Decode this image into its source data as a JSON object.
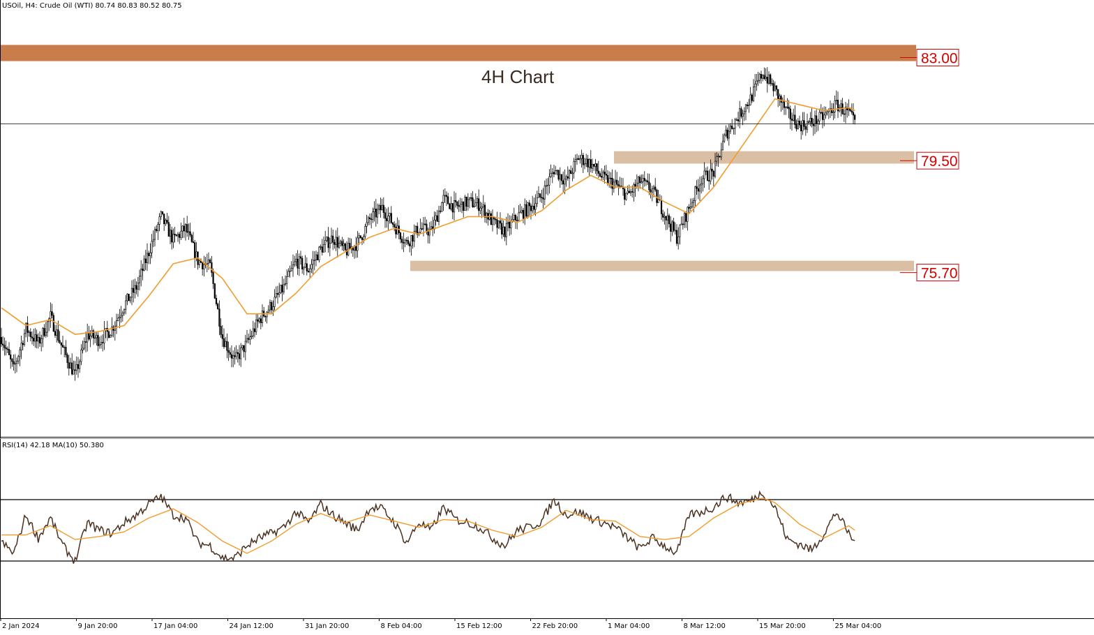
{
  "header": {
    "symbol_info": "USOil, H4:  Crude Oil (WTI)  80.74 80.83 80.52 80.75"
  },
  "annotation": {
    "chart_title": "4H Chart"
  },
  "colors": {
    "resistance_zone": "#c87d4a",
    "support_zone": "#dbbfa5",
    "moving_average": "#f39b2a",
    "level_label": "#d40000",
    "candle": "#000000",
    "rsi_line": "#4a3020"
  },
  "chart_data": {
    "type": "candlestick",
    "symbol": "USOil",
    "timeframe": "H4",
    "ylim": [
      70.5,
      84.6
    ],
    "current_price": 80.75,
    "x_tick_labels": [
      "2 Jan 2024",
      "9 Jan 20:00",
      "17 Jan 04:00",
      "24 Jan 12:00",
      "31 Jan 20:00",
      "8 Feb 04:00",
      "15 Feb 12:00",
      "22 Feb 20:00",
      "1 Mar 04:00",
      "8 Mar 12:00",
      "15 Mar 20:00",
      "25 Mar 04:00"
    ],
    "close_path": [
      [
        0,
        73.5
      ],
      [
        8,
        72.4
      ],
      [
        16,
        73.8
      ],
      [
        24,
        73.3
      ],
      [
        32,
        74.2
      ],
      [
        40,
        73.1
      ],
      [
        48,
        72.2
      ],
      [
        56,
        73.6
      ],
      [
        64,
        73.4
      ],
      [
        72,
        73.8
      ],
      [
        80,
        74.6
      ],
      [
        88,
        75.2
      ],
      [
        96,
        76.4
      ],
      [
        104,
        77.6
      ],
      [
        112,
        76.8
      ],
      [
        120,
        77.2
      ],
      [
        128,
        76.1
      ],
      [
        136,
        75.9
      ],
      [
        144,
        73.5
      ],
      [
        152,
        72.7
      ],
      [
        160,
        73.3
      ],
      [
        168,
        74.1
      ],
      [
        176,
        74.6
      ],
      [
        184,
        75.2
      ],
      [
        192,
        76.1
      ],
      [
        200,
        75.8
      ],
      [
        208,
        76.5
      ],
      [
        216,
        76.9
      ],
      [
        224,
        76.4
      ],
      [
        232,
        76.7
      ],
      [
        240,
        77.5
      ],
      [
        248,
        77.9
      ],
      [
        256,
        77.3
      ],
      [
        264,
        76.7
      ],
      [
        272,
        77.2
      ],
      [
        280,
        77.1
      ],
      [
        288,
        78.2
      ],
      [
        296,
        77.9
      ],
      [
        304,
        78.1
      ],
      [
        312,
        78.0
      ],
      [
        320,
        77.4
      ],
      [
        328,
        77.1
      ],
      [
        336,
        77.6
      ],
      [
        344,
        77.9
      ],
      [
        352,
        78.3
      ],
      [
        360,
        79.2
      ],
      [
        368,
        78.8
      ],
      [
        376,
        79.6
      ],
      [
        384,
        79.4
      ],
      [
        392,
        78.9
      ],
      [
        400,
        78.7
      ],
      [
        408,
        78.3
      ],
      [
        416,
        78.8
      ],
      [
        424,
        78.5
      ],
      [
        432,
        77.7
      ],
      [
        440,
        76.9
      ],
      [
        448,
        77.9
      ],
      [
        456,
        78.9
      ],
      [
        464,
        79.1
      ],
      [
        472,
        80.4
      ],
      [
        480,
        81.0
      ],
      [
        488,
        81.6
      ],
      [
        496,
        82.5
      ],
      [
        504,
        81.9
      ],
      [
        512,
        81.1
      ],
      [
        520,
        80.7
      ],
      [
        528,
        80.8
      ],
      [
        536,
        81.0
      ],
      [
        544,
        81.4
      ],
      [
        552,
        81.1
      ],
      [
        556,
        80.75
      ]
    ],
    "ma_path": [
      [
        0,
        74.5
      ],
      [
        16,
        73.9
      ],
      [
        32,
        74.1
      ],
      [
        48,
        73.6
      ],
      [
        64,
        73.7
      ],
      [
        80,
        73.9
      ],
      [
        96,
        74.9
      ],
      [
        112,
        76.0
      ],
      [
        128,
        76.2
      ],
      [
        144,
        75.5
      ],
      [
        160,
        74.3
      ],
      [
        176,
        74.3
      ],
      [
        192,
        75.0
      ],
      [
        208,
        75.9
      ],
      [
        224,
        76.4
      ],
      [
        240,
        76.9
      ],
      [
        256,
        77.2
      ],
      [
        272,
        77.0
      ],
      [
        288,
        77.3
      ],
      [
        304,
        77.6
      ],
      [
        320,
        77.6
      ],
      [
        336,
        77.4
      ],
      [
        352,
        77.8
      ],
      [
        368,
        78.5
      ],
      [
        384,
        79.0
      ],
      [
        400,
        78.6
      ],
      [
        416,
        78.6
      ],
      [
        432,
        78.1
      ],
      [
        448,
        77.7
      ],
      [
        464,
        78.6
      ],
      [
        480,
        79.8
      ],
      [
        496,
        81.0
      ],
      [
        504,
        81.6
      ],
      [
        520,
        81.4
      ],
      [
        536,
        81.2
      ],
      [
        552,
        81.3
      ],
      [
        556,
        81.2
      ]
    ],
    "horizontal_levels": [
      {
        "name": "resistance",
        "price": 83.0,
        "label": "83.00",
        "zone": [
          82.88,
          83.43
        ]
      },
      {
        "name": "support-upper",
        "price": 79.5,
        "label": "79.50",
        "zone": [
          79.4,
          79.82
        ]
      },
      {
        "name": "support-lower",
        "price": 75.7,
        "label": "75.70",
        "zone": [
          75.75,
          76.1
        ]
      }
    ],
    "rsi_panel": {
      "label": "RSI(14) 42.18 MA(10) 50.380",
      "ylim": [
        0,
        100
      ],
      "levels": [
        70,
        30
      ],
      "rsi_path": [
        [
          0,
          42
        ],
        [
          8,
          35
        ],
        [
          16,
          60
        ],
        [
          24,
          45
        ],
        [
          32,
          58
        ],
        [
          40,
          40
        ],
        [
          48,
          30
        ],
        [
          56,
          55
        ],
        [
          64,
          50
        ],
        [
          72,
          48
        ],
        [
          80,
          55
        ],
        [
          88,
          60
        ],
        [
          96,
          67
        ],
        [
          104,
          72
        ],
        [
          112,
          60
        ],
        [
          120,
          58
        ],
        [
          128,
          42
        ],
        [
          136,
          40
        ],
        [
          144,
          32
        ],
        [
          152,
          32
        ],
        [
          160,
          40
        ],
        [
          168,
          45
        ],
        [
          176,
          48
        ],
        [
          184,
          52
        ],
        [
          192,
          62
        ],
        [
          200,
          55
        ],
        [
          208,
          67
        ],
        [
          216,
          60
        ],
        [
          224,
          55
        ],
        [
          232,
          50
        ],
        [
          240,
          65
        ],
        [
          248,
          64
        ],
        [
          256,
          55
        ],
        [
          264,
          42
        ],
        [
          272,
          55
        ],
        [
          280,
          50
        ],
        [
          288,
          65
        ],
        [
          296,
          57
        ],
        [
          304,
          55
        ],
        [
          312,
          52
        ],
        [
          320,
          45
        ],
        [
          328,
          40
        ],
        [
          336,
          50
        ],
        [
          344,
          52
        ],
        [
          352,
          56
        ],
        [
          360,
          70
        ],
        [
          368,
          60
        ],
        [
          376,
          62
        ],
        [
          384,
          58
        ],
        [
          392,
          55
        ],
        [
          400,
          52
        ],
        [
          408,
          45
        ],
        [
          416,
          38
        ],
        [
          424,
          45
        ],
        [
          432,
          40
        ],
        [
          440,
          35
        ],
        [
          448,
          60
        ],
        [
          456,
          62
        ],
        [
          464,
          65
        ],
        [
          472,
          72
        ],
        [
          480,
          68
        ],
        [
          488,
          69
        ],
        [
          496,
          75
        ],
        [
          504,
          65
        ],
        [
          512,
          44
        ],
        [
          520,
          41
        ],
        [
          528,
          37
        ],
        [
          536,
          48
        ],
        [
          544,
          62
        ],
        [
          552,
          48
        ],
        [
          556,
          42
        ]
      ],
      "rsi_ma_path": [
        [
          0,
          47
        ],
        [
          16,
          47
        ],
        [
          32,
          53
        ],
        [
          48,
          44
        ],
        [
          64,
          46
        ],
        [
          80,
          49
        ],
        [
          96,
          58
        ],
        [
          112,
          64
        ],
        [
          128,
          55
        ],
        [
          144,
          43
        ],
        [
          160,
          35
        ],
        [
          176,
          43
        ],
        [
          192,
          54
        ],
        [
          208,
          61
        ],
        [
          224,
          55
        ],
        [
          240,
          60
        ],
        [
          256,
          56
        ],
        [
          272,
          52
        ],
        [
          288,
          57
        ],
        [
          304,
          56
        ],
        [
          320,
          50
        ],
        [
          336,
          46
        ],
        [
          352,
          52
        ],
        [
          368,
          63
        ],
        [
          384,
          57
        ],
        [
          400,
          56
        ],
        [
          416,
          46
        ],
        [
          432,
          44
        ],
        [
          448,
          46
        ],
        [
          464,
          58
        ],
        [
          480,
          67
        ],
        [
          496,
          71
        ],
        [
          504,
          68
        ],
        [
          520,
          54
        ],
        [
          536,
          45
        ],
        [
          552,
          53
        ],
        [
          556,
          50
        ]
      ]
    }
  }
}
